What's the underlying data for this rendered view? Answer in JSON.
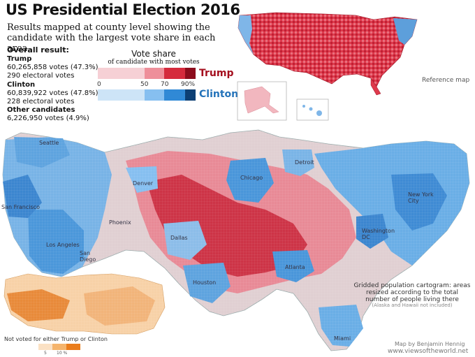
{
  "title": "US Presidential Election 2016",
  "subtitle": "Results mapped at county level showing the candidate with the largest vote share in each area",
  "overall": {
    "heading": "Overall result:",
    "candidates": [
      {
        "name": "Trump",
        "votes": "60,265,858 votes (47.3%)",
        "electoral": "290 electoral votes"
      },
      {
        "name": "Clinton",
        "votes": "60,839,922 votes (47.8%)",
        "electoral": "228 electoral votes"
      },
      {
        "name": "Other candidates",
        "votes": "6,226,950 votes (4.9%)"
      }
    ]
  },
  "legend": {
    "title": "Vote share",
    "subtitle": "of candidate with most votes",
    "ticks": [
      "0",
      "50",
      "70",
      "90%"
    ],
    "trump_label": "Trump",
    "clinton_label": "Clinton",
    "trump_colors": [
      "#f6d0d5",
      "#ee8f9a",
      "#d52a3c",
      "#8c0c1c"
    ],
    "clinton_colors": [
      "#cde4f7",
      "#86bff0",
      "#3089d6",
      "#0d3f74"
    ]
  },
  "reference_map_label": "Reference map",
  "cities": {
    "seattle": "Seattle",
    "san_francisco": "San Francisco",
    "los_angeles": "Los Angeles",
    "san_diego": "San Diego",
    "phoenix": "Phoenix",
    "denver": "Denver",
    "dallas": "Dallas",
    "houston": "Houston",
    "chicago": "Chicago",
    "detroit": "Detroit",
    "atlanta": "Atlanta",
    "washington": "Washington DC",
    "new_york": "New York City",
    "miami": "Miami"
  },
  "cartogram_note": "Gridded population cartogram: areas resized according to the total number of people living there",
  "cartogram_note_sub": "(Alaska and Hawaii not included)",
  "not_voted": {
    "label": "Not voted for either Trump or Clinton",
    "ticks": [
      "5",
      "10 %"
    ],
    "colors": [
      "#fbe1c4",
      "#f5b46c",
      "#ea7d1c"
    ]
  },
  "credit": {
    "line1": "Map by Benjamin Hennig",
    "line2": "www.viewsoftheworld.net"
  }
}
